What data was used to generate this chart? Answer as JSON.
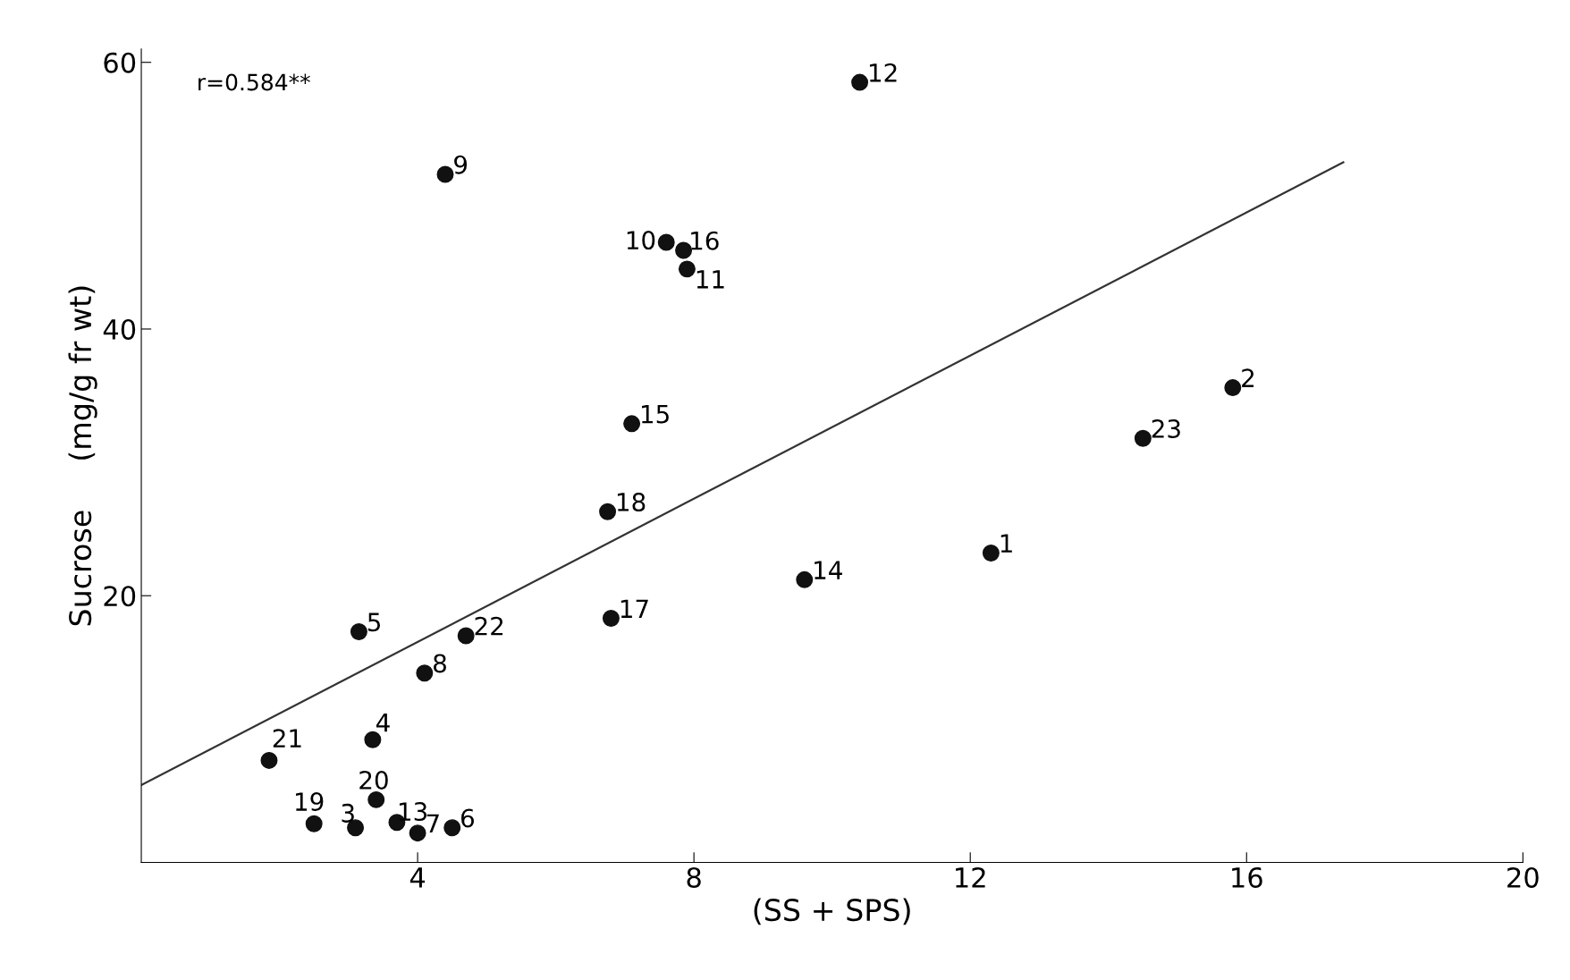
{
  "chart_data": {
    "type": "scatter",
    "xlabel": "(SS + SPS)",
    "ylabel": "Sucrose     (mg/g fr wt)",
    "annotations": [
      "r=0.584**",
      {
        "text": "1",
        "x": 12.3,
        "y": 23.2
      },
      {
        "text": "2",
        "x": 15.8,
        "y": 35.6
      },
      {
        "text": "3",
        "x": 3.1,
        "y": 2.6
      },
      {
        "text": "4",
        "x": 3.35,
        "y": 9.2
      },
      {
        "text": "5",
        "x": 3.15,
        "y": 17.3
      },
      {
        "text": "6",
        "x": 4.5,
        "y": 2.6
      },
      {
        "text": "7",
        "x": 4.0,
        "y": 2.2
      },
      {
        "text": "8",
        "x": 4.1,
        "y": 14.2
      },
      {
        "text": "9",
        "x": 4.4,
        "y": 51.6
      },
      {
        "text": "10",
        "x": 7.6,
        "y": 46.5
      },
      {
        "text": "11",
        "x": 7.9,
        "y": 44.5
      },
      {
        "text": "12",
        "x": 10.4,
        "y": 58.5
      },
      {
        "text": "13",
        "x": 3.7,
        "y": 3.0
      },
      {
        "text": "14",
        "x": 9.6,
        "y": 21.2
      },
      {
        "text": "15",
        "x": 7.1,
        "y": 32.9
      },
      {
        "text": "16",
        "x": 7.85,
        "y": 45.9
      },
      {
        "text": "17",
        "x": 6.8,
        "y": 18.3
      },
      {
        "text": "18",
        "x": 6.75,
        "y": 26.3
      },
      {
        "text": "19",
        "x": 2.5,
        "y": 2.9
      },
      {
        "text": "20",
        "x": 3.4,
        "y": 4.7
      },
      {
        "text": "21",
        "x": 1.85,
        "y": 7.65
      },
      {
        "text": "22",
        "x": 4.7,
        "y": 17.0
      },
      {
        "text": "23",
        "x": 14.5,
        "y": 31.8
      }
    ],
    "xlim": [
      0,
      20
    ],
    "xticks": [
      4,
      8,
      12,
      16,
      20
    ],
    "ylim": [
      0,
      61
    ],
    "yticks": [
      20,
      40,
      60
    ],
    "grid": false,
    "legend": false,
    "marker": "circle",
    "series": [
      {
        "color": "#111111",
        "x": [
          12.3,
          15.8,
          3.1,
          3.35,
          3.15,
          4.5,
          4.0,
          4.1,
          4.4,
          7.6,
          7.9,
          10.4,
          3.7,
          9.6,
          7.1,
          7.85,
          6.8,
          6.75,
          2.5,
          3.4,
          1.85,
          4.7,
          14.5
        ],
        "values": [
          23.2,
          35.6,
          2.6,
          9.2,
          17.3,
          2.6,
          2.2,
          14.2,
          51.6,
          46.5,
          44.5,
          58.5,
          3.0,
          21.2,
          32.9,
          45.9,
          18.3,
          26.3,
          2.9,
          4.7,
          7.65,
          17.0,
          31.8
        ]
      },
      {
        "type": "line",
        "color": "#333333",
        "x": [
          0,
          17.4
        ],
        "values": [
          5.8,
          52.5
        ],
        "marker": "none",
        "line_style": "solid"
      }
    ]
  }
}
